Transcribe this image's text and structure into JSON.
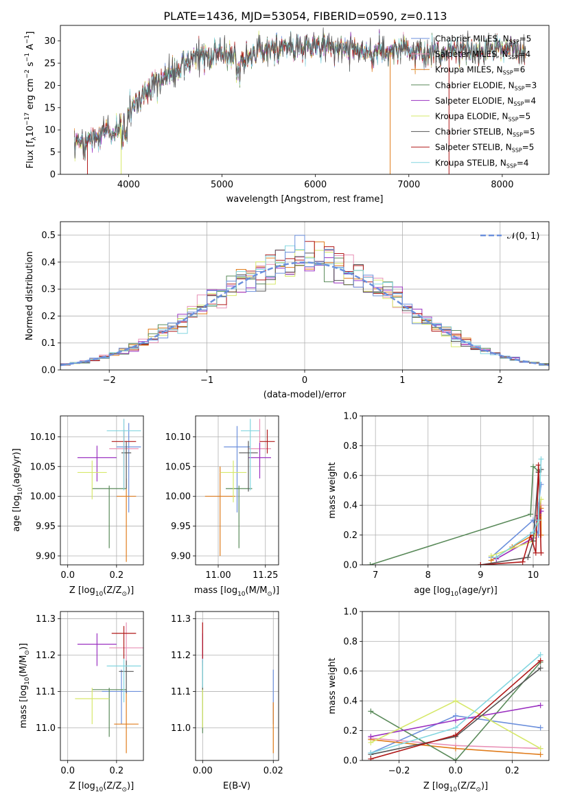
{
  "figure": {
    "title": "PLATE=1436, MJD=53054, FIBERID=0590, z=0.113"
  },
  "colors": {
    "Chabrier MILES": "#6b8fdc",
    "Salpeter MILES": "#e88fb5",
    "Kroupa MILES": "#e07b1a",
    "Chabrier ELODIE": "#5a8a5a",
    "Salpeter ELODIE": "#9a30c0",
    "Kroupa ELODIE": "#d6e86a",
    "Chabrier STELIB": "#555555",
    "Salpeter STELIB": "#b01818",
    "Kroupa STELIB": "#82d6e0",
    "normal_curve": "#6b8fdc"
  },
  "chart_data": [
    {
      "id": "spectrum",
      "type": "line",
      "xlabel": "wavelength [Angstrom, rest frame]",
      "ylabel_main": "Flux [f",
      "ylabel_sub": "λ",
      "ylabel_mid": "10",
      "ylabel_sup1": "−17",
      "ylabel_rest": " erg cm",
      "ylabel_sup2": "−2",
      "ylabel_s": " s",
      "ylabel_sup3": "−1",
      "ylabel_A": " A",
      "ylabel_sup4": "−1",
      "ylabel_end": "]",
      "xlim": [
        3270,
        8500
      ],
      "ylim": [
        0,
        33.5
      ],
      "xticks": [
        4000,
        5000,
        6000,
        7000,
        8000
      ],
      "yticks": [
        0,
        5,
        10,
        15,
        20,
        25,
        30
      ],
      "continuum_x": [
        3420,
        3550,
        3700,
        3850,
        4000,
        4150,
        4300,
        4450,
        4600,
        4750,
        4900,
        5050,
        5200,
        5400,
        5600,
        5800,
        6000,
        6200,
        6400,
        6600,
        6800,
        7000,
        7200,
        7400,
        7600,
        7800,
        8000,
        8250
      ],
      "continuum_y": [
        7.5,
        7.0,
        9.5,
        9.5,
        14.0,
        18.0,
        21.0,
        23.0,
        25.0,
        26.5,
        27.0,
        27.5,
        25.5,
        28.0,
        28.5,
        28.5,
        29.0,
        28.5,
        28.5,
        28.0,
        27.5,
        27.5,
        27.0,
        27.5,
        28.0,
        28.0,
        29.0,
        28.0
      ],
      "legend": [
        {
          "label": "Chabrier MILES, N",
          "sub": "SSP",
          "n": "=5"
        },
        {
          "label": "Salpeter MILES, N",
          "sub": "SSP",
          "n": "=4"
        },
        {
          "label": "Kroupa MILES, N",
          "sub": "SSP",
          "n": "=6"
        },
        {
          "label": "Chabrier ELODIE, N",
          "sub": "SSP",
          "n": "=3"
        },
        {
          "label": "Salpeter ELODIE, N",
          "sub": "SSP",
          "n": "=4"
        },
        {
          "label": "Kroupa ELODIE, N",
          "sub": "SSP",
          "n": "=5"
        },
        {
          "label": "Chabrier STELIB, N",
          "sub": "SSP",
          "n": "=5"
        },
        {
          "label": "Salpeter STELIB, N",
          "sub": "SSP",
          "n": "=5"
        },
        {
          "label": "Kroupa STELIB, N",
          "sub": "SSP",
          "n": "=4"
        }
      ],
      "series_order": [
        "Chabrier MILES",
        "Salpeter MILES",
        "Kroupa MILES",
        "Chabrier ELODIE",
        "Salpeter ELODIE",
        "Kroupa ELODIE",
        "Chabrier STELIB",
        "Salpeter STELIB",
        "Kroupa STELIB"
      ],
      "drop_lines": [
        {
          "series": "Salpeter STELIB",
          "x": 3560
        },
        {
          "series": "Kroupa ELODIE",
          "x": 3920
        },
        {
          "series": "Kroupa MILES",
          "x": 6800
        },
        {
          "series": "Salpeter STELIB",
          "x": 7430
        }
      ]
    },
    {
      "id": "residuals",
      "type": "histogram",
      "xlabel": "(data-model)/error",
      "ylabel": "Normed distribution",
      "xlim": [
        -2.5,
        2.5
      ],
      "ylim": [
        0,
        0.55
      ],
      "xticks": [
        -2,
        -1,
        0,
        1,
        2
      ],
      "xtick_labels": [
        "−2",
        "−1",
        "0",
        "1",
        "2"
      ],
      "yticks": [
        0.0,
        0.1,
        0.2,
        0.3,
        0.4,
        0.5
      ],
      "ytick_labels": [
        "0.0",
        "0.1",
        "0.2",
        "0.3",
        "0.4",
        "0.5"
      ],
      "bin_width": 0.1,
      "grid": true,
      "legend_label": "𝒩(0, 1)",
      "legend_position": "top-right"
    },
    {
      "id": "age_vs_Z",
      "type": "errorbar",
      "xlabel": "Z [log",
      "xlabel_sub": "10",
      "xlabel_rest": "(Z/Z",
      "xlabel_sub2": "⊙",
      "xlabel_end": ")]",
      "ylabel": "age  [log",
      "ylabel_sub": "10",
      "ylabel_rest": "(age/yr)]",
      "xlim": [
        -0.03,
        0.31
      ],
      "ylim": [
        9.885,
        10.135
      ],
      "xticks": [
        0.0,
        0.2
      ],
      "xtick_labels": [
        "0.0",
        "0.2"
      ],
      "yticks": [
        9.9,
        9.95,
        10.0,
        10.05,
        10.1
      ],
      "ytick_labels": [
        "9.90",
        "9.95",
        "10.00",
        "10.05",
        "10.10"
      ],
      "points": [
        {
          "series": "Chabrier MILES",
          "x": 0.25,
          "y": 10.083,
          "xerr": 0.05,
          "yerr_lo": 0.11,
          "yerr_hi": 0.04
        },
        {
          "series": "Salpeter MILES",
          "x": 0.23,
          "y": 10.08,
          "xerr": 0.06,
          "yerr_lo": 0.03,
          "yerr_hi": 0.05
        },
        {
          "series": "Kroupa MILES",
          "x": 0.24,
          "y": 10.0,
          "xerr": 0.04,
          "yerr_lo": 0.11,
          "yerr_hi": 0.03
        },
        {
          "series": "Chabrier ELODIE",
          "x": 0.17,
          "y": 10.013,
          "xerr": 0.07,
          "yerr_lo": 0.1,
          "yerr_hi": 0.005
        },
        {
          "series": "Salpeter ELODIE",
          "x": 0.12,
          "y": 10.065,
          "xerr": 0.08,
          "yerr_lo": 0.04,
          "yerr_hi": 0.02
        },
        {
          "series": "Kroupa ELODIE",
          "x": 0.1,
          "y": 10.04,
          "xerr": 0.06,
          "yerr_lo": 0.045,
          "yerr_hi": 0.02
        },
        {
          "series": "Chabrier STELIB",
          "x": 0.24,
          "y": 10.073,
          "xerr": 0.02,
          "yerr_lo": 0.06,
          "yerr_hi": 0.02
        },
        {
          "series": "Salpeter STELIB",
          "x": 0.23,
          "y": 10.092,
          "xerr": 0.05,
          "yerr_lo": 0.08,
          "yerr_hi": 0.02
        },
        {
          "series": "Kroupa STELIB",
          "x": 0.23,
          "y": 10.11,
          "xerr": 0.07,
          "yerr_lo": 0.1,
          "yerr_hi": 0.02
        }
      ]
    },
    {
      "id": "age_vs_mass",
      "type": "errorbar",
      "xlabel": "mass [log",
      "xlabel_sub": "10",
      "xlabel_rest": "(M/M",
      "xlabel_sub2": "⊙",
      "xlabel_end": ")]",
      "xlim": [
        10.88,
        11.32
      ],
      "ylim": [
        9.885,
        10.135
      ],
      "xticks": [
        11.0,
        11.25
      ],
      "xtick_labels": [
        "11.00",
        "11.25"
      ],
      "yticks": [
        9.9,
        9.95,
        10.0,
        10.05,
        10.1
      ],
      "ytick_labels": [
        "9.90",
        "9.95",
        "10.00",
        "10.05",
        "10.10"
      ],
      "points": [
        {
          "series": "Chabrier MILES",
          "x": 11.1,
          "y": 10.083,
          "xerr": 0.07,
          "yerr_lo": 0.11,
          "yerr_hi": 0.035
        },
        {
          "series": "Salpeter MILES",
          "x": 11.22,
          "y": 10.08,
          "xerr": 0.06,
          "yerr_lo": 0.03,
          "yerr_hi": 0.05
        },
        {
          "series": "Kroupa MILES",
          "x": 11.01,
          "y": 10.0,
          "xerr": 0.08,
          "yerr_lo": 0.1,
          "yerr_hi": 0.05
        },
        {
          "series": "Chabrier ELODIE",
          "x": 11.11,
          "y": 10.013,
          "xerr": 0.07,
          "yerr_lo": 0.1,
          "yerr_hi": 0.005
        },
        {
          "series": "Salpeter ELODIE",
          "x": 11.22,
          "y": 10.065,
          "xerr": 0.06,
          "yerr_lo": 0.035,
          "yerr_hi": 0.025
        },
        {
          "series": "Kroupa ELODIE",
          "x": 11.08,
          "y": 10.04,
          "xerr": 0.07,
          "yerr_lo": 0.05,
          "yerr_hi": 0.02
        },
        {
          "series": "Chabrier STELIB",
          "x": 11.16,
          "y": 10.073,
          "xerr": 0.05,
          "yerr_lo": 0.065,
          "yerr_hi": 0.02
        },
        {
          "series": "Salpeter STELIB",
          "x": 11.26,
          "y": 10.092,
          "xerr": 0.04,
          "yerr_lo": 0.02,
          "yerr_hi": 0.02
        },
        {
          "series": "Kroupa STELIB",
          "x": 11.17,
          "y": 10.11,
          "xerr": 0.05,
          "yerr_lo": 0.1,
          "yerr_hi": 0.02
        }
      ]
    },
    {
      "id": "mass_weight_vs_age",
      "type": "line",
      "xlabel": "age  [log",
      "xlabel_sub": "10",
      "xlabel_rest": "(age/yr)]",
      "ylabel": "mass weight",
      "xlim": [
        6.75,
        10.3
      ],
      "ylim": [
        0,
        1.0
      ],
      "xticks": [
        7,
        8,
        9,
        10
      ],
      "xtick_labels": [
        "7",
        "8",
        "9",
        "10"
      ],
      "yticks": [
        0.0,
        0.2,
        0.4,
        0.6,
        0.8,
        1.0
      ],
      "ytick_labels": [
        "0.0",
        "0.2",
        "0.4",
        "0.6",
        "0.8",
        "1.0"
      ],
      "series": [
        {
          "series": "Chabrier MILES",
          "x": [
            9.2,
            10.0,
            10.1,
            10.1,
            10.15
          ],
          "y": [
            0.05,
            0.3,
            0.2,
            0.4,
            0.54
          ]
        },
        {
          "series": "Salpeter MILES",
          "x": [
            9.3,
            10.0,
            10.1,
            10.15
          ],
          "y": [
            0.04,
            0.18,
            0.3,
            0.4
          ]
        },
        {
          "series": "Kroupa MILES",
          "x": [
            9.2,
            9.6,
            10.0,
            10.1,
            10.15,
            10.15
          ],
          "y": [
            0.03,
            0.12,
            0.2,
            0.3,
            0.38,
            0.2
          ]
        },
        {
          "series": "Chabrier ELODIE",
          "x": [
            6.9,
            9.95,
            10.0,
            10.1
          ],
          "y": [
            0.0,
            0.34,
            0.66,
            0.63
          ]
        },
        {
          "series": "Salpeter ELODIE",
          "x": [
            9.3,
            10.0,
            10.1,
            10.15
          ],
          "y": [
            0.04,
            0.18,
            0.33,
            0.36
          ]
        },
        {
          "series": "Kroupa ELODIE",
          "x": [
            9.2,
            10.0,
            10.1,
            10.15
          ],
          "y": [
            0.06,
            0.16,
            0.3,
            0.44
          ]
        },
        {
          "series": "Chabrier STELIB",
          "x": [
            9.0,
            9.9,
            10.0,
            10.1,
            10.15
          ],
          "y": [
            0.0,
            0.05,
            0.16,
            0.62,
            0.64
          ]
        },
        {
          "series": "Salpeter STELIB",
          "x": [
            9.0,
            9.8,
            9.95,
            10.05,
            10.1,
            10.15
          ],
          "y": [
            0.0,
            0.02,
            0.2,
            0.08,
            0.67,
            0.08
          ]
        },
        {
          "series": "Kroupa STELIB",
          "x": [
            9.3,
            10.0,
            10.1,
            10.15
          ],
          "y": [
            0.05,
            0.22,
            0.3,
            0.71
          ]
        }
      ]
    },
    {
      "id": "mass_vs_Z",
      "type": "errorbar",
      "xlabel": "Z [log",
      "xlabel_sub": "10",
      "xlabel_rest": "(Z/Z",
      "xlabel_sub2": "⊙",
      "xlabel_end": ")]",
      "ylabel": "mass [log",
      "ylabel_sub": "10",
      "ylabel_rest": "(M/M",
      "ylabel_sub2": "⊙",
      "ylabel_end": ")]",
      "xlim": [
        -0.03,
        0.31
      ],
      "ylim": [
        10.91,
        11.32
      ],
      "xticks": [
        0.0,
        0.2
      ],
      "xtick_labels": [
        "0.0",
        "0.2"
      ],
      "yticks": [
        11.0,
        11.1,
        11.2,
        11.3
      ],
      "ytick_labels": [
        "11.0",
        "11.1",
        "11.2",
        "11.3"
      ],
      "points": [
        {
          "series": "Chabrier MILES",
          "x": 0.22,
          "y": 11.1,
          "xerr": 0.08,
          "yerr_lo": 0.09,
          "yerr_hi": 0.06
        },
        {
          "series": "Salpeter MILES",
          "x": 0.24,
          "y": 11.22,
          "xerr": 0.07,
          "yerr_lo": 0.05,
          "yerr_hi": 0.07
        },
        {
          "series": "Kroupa MILES",
          "x": 0.24,
          "y": 11.01,
          "xerr": 0.05,
          "yerr_lo": 0.08,
          "yerr_hi": 0.09
        },
        {
          "series": "Chabrier ELODIE",
          "x": 0.17,
          "y": 11.105,
          "xerr": 0.07,
          "yerr_lo": 0.13,
          "yerr_hi": 0.005
        },
        {
          "series": "Salpeter ELODIE",
          "x": 0.12,
          "y": 11.23,
          "xerr": 0.08,
          "yerr_lo": 0.06,
          "yerr_hi": 0.03
        },
        {
          "series": "Kroupa ELODIE",
          "x": 0.1,
          "y": 11.08,
          "xerr": 0.07,
          "yerr_lo": 0.07,
          "yerr_hi": 0.03
        },
        {
          "series": "Chabrier STELIB",
          "x": 0.24,
          "y": 11.155,
          "xerr": 0.03,
          "yerr_lo": 0.06,
          "yerr_hi": 0.03
        },
        {
          "series": "Salpeter STELIB",
          "x": 0.23,
          "y": 11.26,
          "xerr": 0.05,
          "yerr_lo": 0.07,
          "yerr_hi": 0.02
        },
        {
          "series": "Kroupa STELIB",
          "x": 0.23,
          "y": 11.17,
          "xerr": 0.07,
          "yerr_lo": 0.1,
          "yerr_hi": 0.02
        }
      ]
    },
    {
      "id": "mass_vs_ebv",
      "type": "errorbar",
      "xlabel": "E(B-V)",
      "xlim": [
        -0.002,
        0.0215
      ],
      "ylim": [
        10.91,
        11.32
      ],
      "xticks": [
        0.0,
        0.02
      ],
      "xtick_labels": [
        "0.00",
        "0.02"
      ],
      "yticks": [
        11.0,
        11.1,
        11.2,
        11.3
      ],
      "ytick_labels": [
        "11.0",
        "11.1",
        "11.2",
        "11.3"
      ],
      "points": [
        {
          "series": "Chabrier MILES",
          "x": 0.02,
          "y": 11.1,
          "xerr": 0.0,
          "yerr_lo": 0.09,
          "yerr_hi": 0.06
        },
        {
          "series": "Salpeter MILES",
          "x": 0.0,
          "y": 11.22,
          "xerr": 0.0,
          "yerr_lo": 0.05,
          "yerr_hi": 0.07
        },
        {
          "series": "Kroupa MILES",
          "x": 0.02,
          "y": 11.01,
          "xerr": 0.0,
          "yerr_lo": 0.08,
          "yerr_hi": 0.06
        },
        {
          "series": "Chabrier ELODIE",
          "x": 0.0,
          "y": 11.105,
          "xerr": 0.0,
          "yerr_lo": 0.12,
          "yerr_hi": 0.01
        },
        {
          "series": "Salpeter ELODIE",
          "x": 0.0,
          "y": 11.23,
          "xerr": 0.0,
          "yerr_lo": 0.05,
          "yerr_hi": 0.03
        },
        {
          "series": "Kroupa ELODIE",
          "x": 0.0,
          "y": 11.08,
          "xerr": 0.0,
          "yerr_lo": 0.08,
          "yerr_hi": 0.03
        },
        {
          "series": "Chabrier STELIB",
          "x": 0.0,
          "y": 11.155,
          "xerr": 0.0,
          "yerr_lo": 0.05,
          "yerr_hi": 0.03
        },
        {
          "series": "Salpeter STELIB",
          "x": 0.0,
          "y": 11.26,
          "xerr": 0.0,
          "yerr_lo": 0.07,
          "yerr_hi": 0.03
        },
        {
          "series": "Kroupa STELIB",
          "x": 0.0,
          "y": 11.17,
          "xerr": 0.0,
          "yerr_lo": 0.06,
          "yerr_hi": 0.02
        }
      ]
    },
    {
      "id": "mass_weight_vs_Z",
      "type": "line",
      "xlabel": "Z [log",
      "xlabel_sub": "10",
      "xlabel_rest": "(Z/Z",
      "xlabel_sub2": "⊙",
      "xlabel_end": ")]",
      "ylabel": "mass weight",
      "xlim": [
        -0.33,
        0.33
      ],
      "ylim": [
        0,
        1.0
      ],
      "xticks": [
        -0.2,
        0.0,
        0.2
      ],
      "xtick_labels": [
        "−0.2",
        "0.0",
        "0.2"
      ],
      "yticks": [
        0.0,
        0.2,
        0.4,
        0.6,
        0.8,
        1.0
      ],
      "ytick_labels": [
        "0.0",
        "0.2",
        "0.4",
        "0.6",
        "0.8",
        "1.0"
      ],
      "series": [
        {
          "series": "Chabrier MILES",
          "x": [
            -0.3,
            0.0,
            0.3
          ],
          "y": [
            0.05,
            0.3,
            0.22
          ]
        },
        {
          "series": "Salpeter MILES",
          "x": [
            -0.3,
            0.0,
            0.3
          ],
          "y": [
            0.15,
            0.1,
            0.08
          ]
        },
        {
          "series": "Kroupa MILES",
          "x": [
            -0.3,
            0.0,
            0.3
          ],
          "y": [
            0.14,
            0.08,
            0.04
          ]
        },
        {
          "series": "Chabrier ELODIE",
          "x": [
            -0.3,
            0.0,
            0.3
          ],
          "y": [
            0.33,
            0.0,
            0.66
          ]
        },
        {
          "series": "Salpeter ELODIE",
          "x": [
            -0.3,
            0.0,
            0.3
          ],
          "y": [
            0.16,
            0.27,
            0.37
          ]
        },
        {
          "series": "Kroupa ELODIE",
          "x": [
            -0.3,
            0.0,
            0.3
          ],
          "y": [
            0.12,
            0.4,
            0.08
          ]
        },
        {
          "series": "Chabrier STELIB",
          "x": [
            -0.3,
            0.0,
            0.3
          ],
          "y": [
            0.04,
            0.16,
            0.62
          ]
        },
        {
          "series": "Salpeter STELIB",
          "x": [
            -0.3,
            0.0,
            0.3
          ],
          "y": [
            0.01,
            0.17,
            0.67
          ]
        },
        {
          "series": "Kroupa STELIB",
          "x": [
            -0.3,
            0.0,
            0.3
          ],
          "y": [
            0.05,
            0.22,
            0.71
          ]
        }
      ]
    }
  ]
}
